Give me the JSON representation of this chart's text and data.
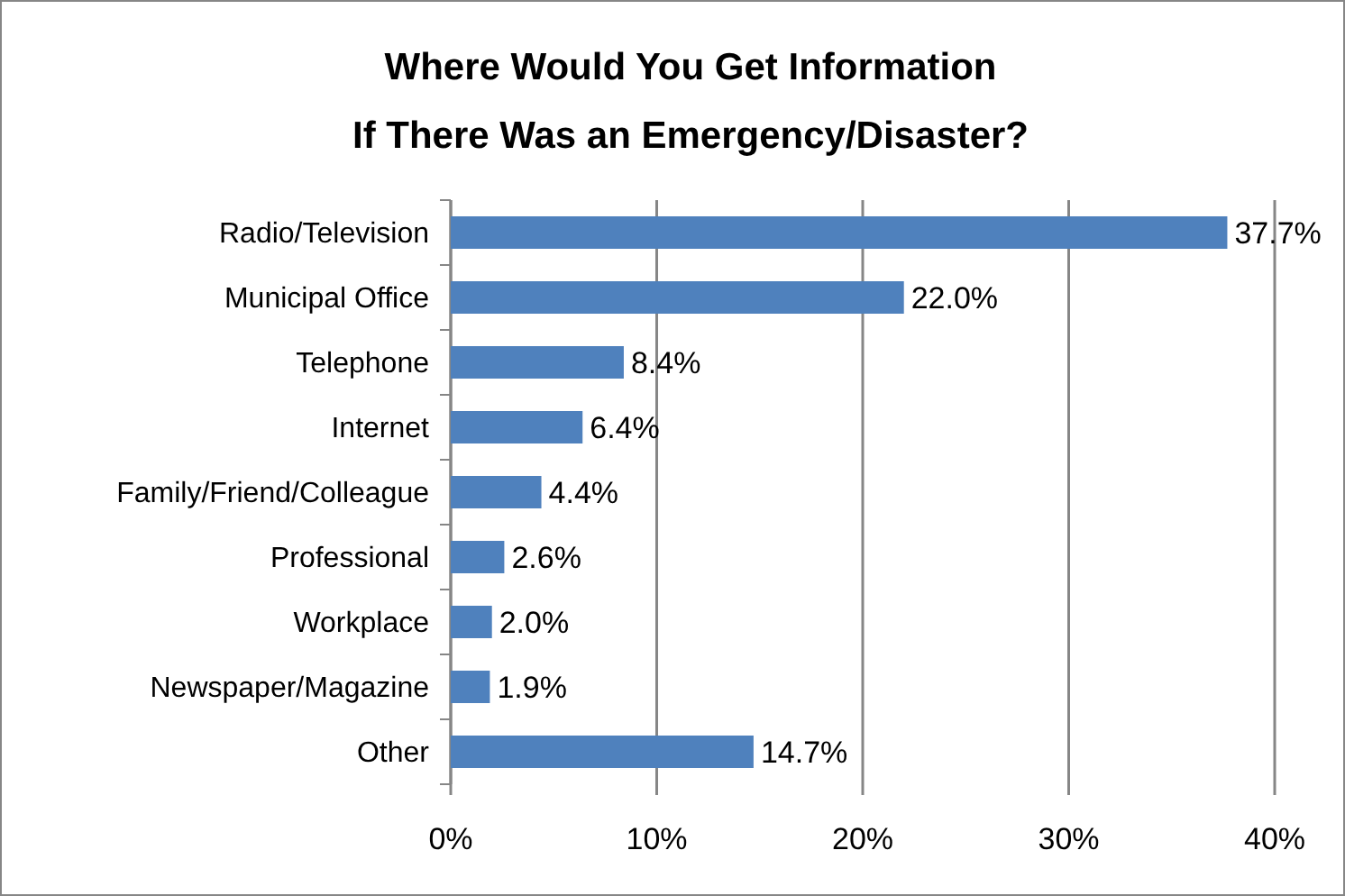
{
  "chart_data": {
    "type": "bar",
    "orientation": "horizontal",
    "title": "Where Would You Get Information\nIf There Was an Emergency/Disaster?",
    "categories": [
      "Radio/Television",
      "Municipal Office",
      "Telephone",
      "Internet",
      "Family/Friend/Colleague",
      "Professional",
      "Workplace",
      "Newspaper/Magazine",
      "Other"
    ],
    "values": [
      37.7,
      22.0,
      8.4,
      6.4,
      4.4,
      2.6,
      2.0,
      1.9,
      14.7
    ],
    "value_labels": [
      "37.7%",
      "22.0%",
      "8.4%",
      "6.4%",
      "4.4%",
      "2.6%",
      "2.0%",
      "1.9%",
      "14.7%"
    ],
    "color": "#4f81bd",
    "xlim": [
      0,
      40
    ],
    "xticks": [
      {
        "value": 0,
        "label": "0%"
      },
      {
        "value": 10,
        "label": "10%"
      },
      {
        "value": 20,
        "label": "20%"
      },
      {
        "value": 30,
        "label": "30%"
      },
      {
        "value": 40,
        "label": "40%"
      }
    ],
    "grid": "x"
  }
}
